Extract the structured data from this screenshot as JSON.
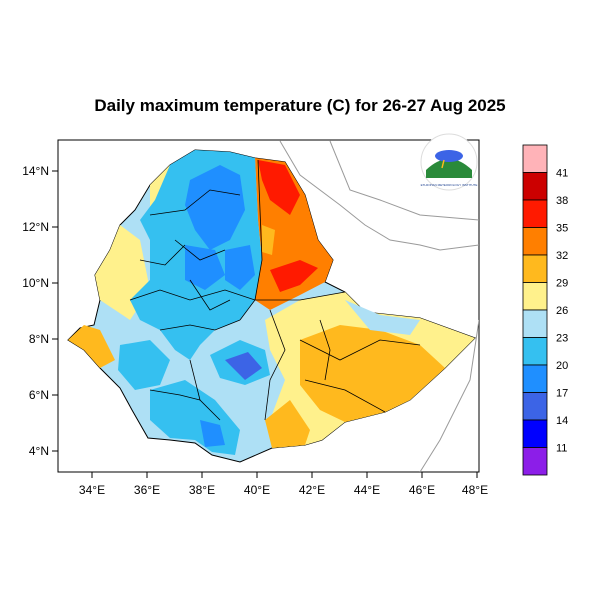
{
  "title": "Daily maximum temperature (C) for 26-27 Aug 2025",
  "axes": {
    "x_ticks": [
      "34°E",
      "36°E",
      "38°E",
      "40°E",
      "42°E",
      "44°E",
      "46°E",
      "48°E"
    ],
    "y_ticks": [
      "14°N",
      "12°N",
      "10°N",
      "8°N",
      "6°N",
      "4°N"
    ]
  },
  "colorbar": {
    "labels": [
      "41",
      "38",
      "35",
      "32",
      "29",
      "26",
      "23",
      "20",
      "17",
      "14",
      "11"
    ],
    "colors": [
      "#ffb3b8",
      "#cc0000",
      "#ff1a00",
      "#ff7f00",
      "#ffb91e",
      "#fff18c",
      "#aee0f5",
      "#35c0f0",
      "#1f8fff",
      "#3c64e6",
      "#0000ff",
      "#8c1ee8"
    ]
  },
  "logo": {
    "label": "ETHIOPIAN METEOROLOGY INSTITUTE"
  }
}
